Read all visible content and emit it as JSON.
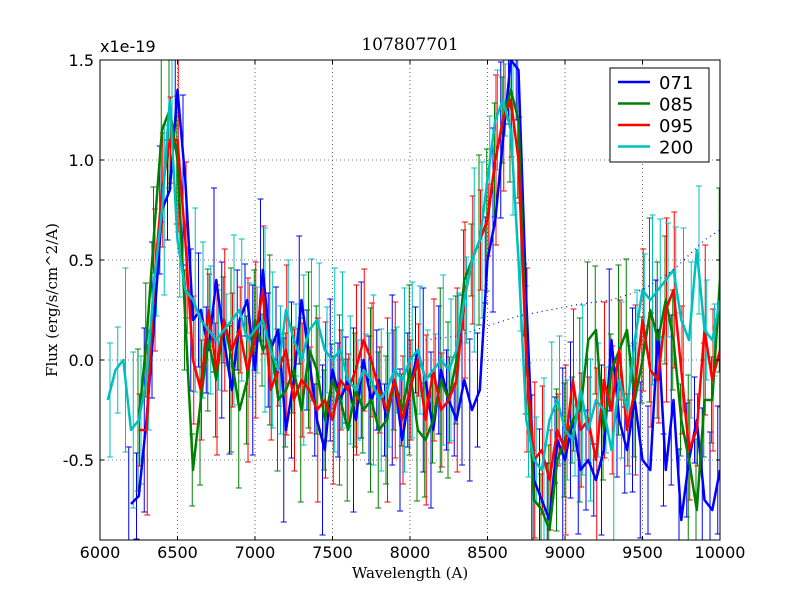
{
  "chart_data": {
    "type": "line",
    "title": "107807701",
    "xlabel": "Wavelength (A)",
    "ylabel": "Flux (erg/s/cm^2/A)",
    "offset_label": "x1e-19",
    "xlim": [
      6000,
      10000
    ],
    "ylim": [
      -0.9,
      1.5
    ],
    "xticks": [
      6000,
      6500,
      7000,
      7500,
      8000,
      8500,
      9000,
      9500,
      10000
    ],
    "yticks": [
      -0.5,
      0.0,
      0.5,
      1.0,
      1.5
    ],
    "ytick_labels": [
      "-0.5",
      "0.0",
      "0.5",
      "1.0",
      "1.5"
    ],
    "grid": true,
    "legend_position": "top-right",
    "colors": {
      "071": "#0000ff",
      "085": "#008000",
      "095": "#ff0000",
      "200": "#00bfbf"
    },
    "x": [
      6050,
      6100,
      6150,
      6200,
      6250,
      6300,
      6350,
      6400,
      6450,
      6500,
      6550,
      6600,
      6650,
      6700,
      6750,
      6800,
      6850,
      6900,
      6950,
      7000,
      7050,
      7100,
      7150,
      7200,
      7250,
      7300,
      7350,
      7400,
      7450,
      7500,
      7550,
      7600,
      7650,
      7700,
      7750,
      7800,
      7850,
      7900,
      7950,
      8000,
      8050,
      8100,
      8150,
      8200,
      8250,
      8300,
      8350,
      8400,
      8450,
      8500,
      8550,
      8600,
      8650,
      8700,
      8750,
      8800,
      8850,
      8900,
      8950,
      9000,
      9050,
      9100,
      9150,
      9200,
      9250,
      9300,
      9350,
      9400,
      9450,
      9500,
      9550,
      9600,
      9650,
      9700,
      9750,
      9800,
      9850,
      9900,
      9950,
      10000
    ],
    "series": [
      {
        "name": "071",
        "values": [
          null,
          null,
          null,
          -0.72,
          -0.68,
          -0.3,
          0.2,
          0.75,
          0.85,
          1.35,
          0.9,
          0.2,
          0.25,
          0.05,
          0.4,
          0.1,
          -0.15,
          0.2,
          0.3,
          -0.05,
          0.45,
          0.05,
          0.15,
          -0.35,
          -0.1,
          0.3,
          0.0,
          -0.3,
          -0.45,
          -0.05,
          -0.2,
          -0.1,
          -0.3,
          0.0,
          -0.2,
          -0.1,
          -0.3,
          -0.1,
          -0.4,
          -0.15,
          0.05,
          -0.1,
          -0.35,
          -0.05,
          -0.2,
          -0.3,
          -0.1,
          -0.25,
          -0.15,
          0.5,
          0.7,
          1.1,
          1.5,
          1.45,
          0.3,
          -0.6,
          -0.7,
          -0.8,
          -0.4,
          -0.5,
          -0.3,
          -0.55,
          -0.5,
          -0.6,
          -0.45,
          0.1,
          -0.3,
          -0.45,
          -0.2,
          -0.5,
          -0.55,
          0.15,
          -0.55,
          -0.2,
          -0.8,
          -0.5,
          -0.3,
          -0.7,
          -0.75,
          -0.55
        ]
      },
      {
        "name": "085",
        "values": [
          null,
          null,
          null,
          null,
          -0.3,
          0.1,
          0.65,
          1.15,
          1.25,
          1.0,
          0.2,
          -0.55,
          -0.2,
          0.1,
          -0.1,
          0.2,
          0.0,
          -0.25,
          -0.1,
          0.2,
          0.05,
          0.1,
          -0.2,
          -0.15,
          -0.05,
          -0.25,
          0.05,
          -0.05,
          -0.3,
          -0.1,
          -0.2,
          -0.35,
          -0.15,
          -0.25,
          -0.2,
          -0.35,
          -0.3,
          -0.1,
          -0.25,
          -0.05,
          -0.35,
          -0.4,
          -0.3,
          -0.1,
          -0.2,
          0.0,
          0.4,
          0.5,
          0.6,
          0.7,
          1.0,
          1.2,
          1.35,
          1.2,
          0.05,
          -0.7,
          -0.75,
          -0.85,
          -0.5,
          -0.4,
          -0.3,
          -0.25,
          0.1,
          0.15,
          -0.35,
          -0.05,
          0.05,
          0.15,
          -0.2,
          0.0,
          0.25,
          0.1,
          0.3,
          0.1,
          -0.3,
          -0.5,
          -0.75,
          -0.2,
          -0.2,
          0.4
        ]
      },
      {
        "name": "095",
        "values": [
          null,
          null,
          null,
          null,
          -0.35,
          -0.35,
          0.4,
          0.85,
          1.1,
          1.1,
          0.6,
          0.0,
          -0.15,
          0.25,
          -0.05,
          0.2,
          0.05,
          0.15,
          -0.05,
          0.1,
          0.35,
          -0.15,
          -0.05,
          0.05,
          -0.2,
          -0.1,
          -0.15,
          -0.25,
          -0.2,
          -0.3,
          -0.1,
          -0.15,
          -0.05,
          0.1,
          0.0,
          -0.15,
          -0.25,
          -0.1,
          -0.3,
          -0.15,
          0.0,
          -0.3,
          -0.05,
          -0.25,
          -0.2,
          -0.1,
          0.3,
          0.5,
          0.6,
          0.7,
          1.0,
          1.2,
          1.3,
          1.0,
          0.0,
          -0.5,
          -0.45,
          -0.6,
          -0.35,
          -0.45,
          -0.1,
          -0.35,
          -0.3,
          -0.5,
          -0.1,
          -0.25,
          0.05,
          -0.35,
          -0.15,
          0.2,
          -0.05,
          -0.1,
          0.25,
          0.35,
          -0.05,
          -0.45,
          -0.35,
          0.15,
          -0.1,
          0.05
        ]
      },
      {
        "name": "200",
        "values": [
          -0.2,
          -0.05,
          0.0,
          -0.35,
          -0.3,
          -0.1,
          0.4,
          0.75,
          1.3,
          0.6,
          0.35,
          0.3,
          0.2,
          0.15,
          0.1,
          0.15,
          0.2,
          0.25,
          0.1,
          0.15,
          0.2,
          0.05,
          -0.05,
          0.25,
          0.1,
          0.0,
          0.15,
          0.2,
          0.05,
          0.0,
          0.05,
          -0.1,
          -0.15,
          -0.05,
          -0.1,
          -0.2,
          -0.15,
          -0.05,
          -0.1,
          0.0,
          0.05,
          -0.1,
          -0.05,
          0.0,
          -0.05,
          0.05,
          0.3,
          0.5,
          0.6,
          0.9,
          1.2,
          1.3,
          1.15,
          0.5,
          -0.3,
          -0.5,
          -0.55,
          -0.3,
          -0.2,
          -0.35,
          -0.4,
          -0.15,
          -0.35,
          -0.2,
          -0.25,
          -0.45,
          -0.1,
          -0.25,
          0.1,
          0.35,
          0.3,
          0.35,
          0.4,
          0.45,
          0.2,
          0.1,
          0.55,
          0.15,
          0.1,
          0.3
        ]
      }
    ],
    "dotted_series": {
      "name": "071 continuum",
      "x": [
        8100,
        8300,
        8500,
        8700,
        8900,
        9100,
        9300,
        9500,
        9700,
        9900,
        10000
      ],
      "values": [
        0.1,
        0.12,
        0.17,
        0.22,
        0.25,
        0.28,
        0.3,
        0.35,
        0.45,
        0.6,
        0.65
      ]
    }
  }
}
